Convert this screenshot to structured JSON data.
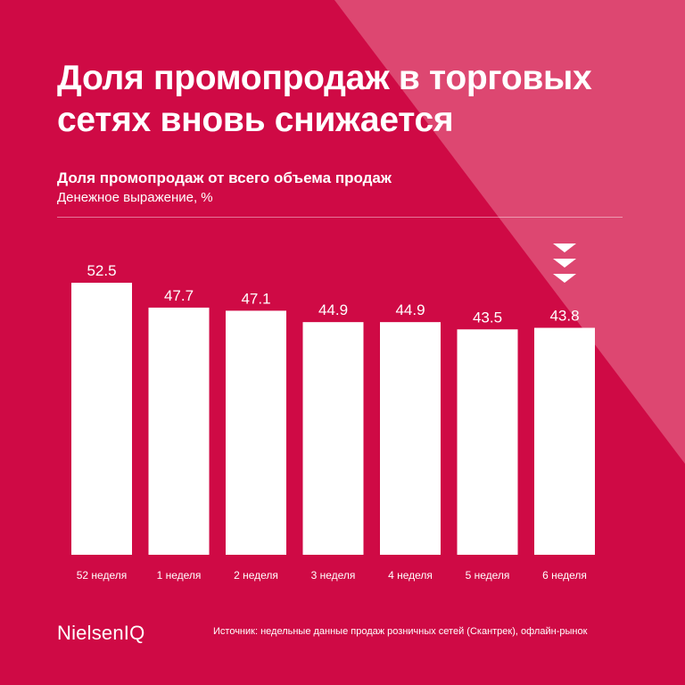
{
  "colors": {
    "background": "#cf0a45",
    "triangle": "#dd4771",
    "bar": "#ffffff",
    "text": "#ffffff"
  },
  "header": {
    "headline": "Доля промопродаж в торговых сетях вновь снижается"
  },
  "footer": {
    "logo_text": "NielsenIQ",
    "source": "Источник: недельные данные продаж розничных сетей (Скантрек), офлайн-рынок"
  },
  "chart_data": {
    "type": "bar",
    "title": "Доля промопродаж от всего объема продаж",
    "subtitle": "Денежное выражение, %",
    "categories": [
      "52 неделя",
      "1 неделя",
      "2 неделя",
      "3 неделя",
      "4 неделя",
      "5 неделя",
      "6 неделя"
    ],
    "values": [
      52.5,
      47.7,
      47.1,
      44.9,
      44.9,
      43.5,
      43.8
    ],
    "ylim": [
      0,
      52.5
    ],
    "grid": false,
    "legend": "none",
    "annotations": [
      {
        "category": "6 неделя",
        "icon": "triple-chevron-down-icon"
      }
    ]
  }
}
